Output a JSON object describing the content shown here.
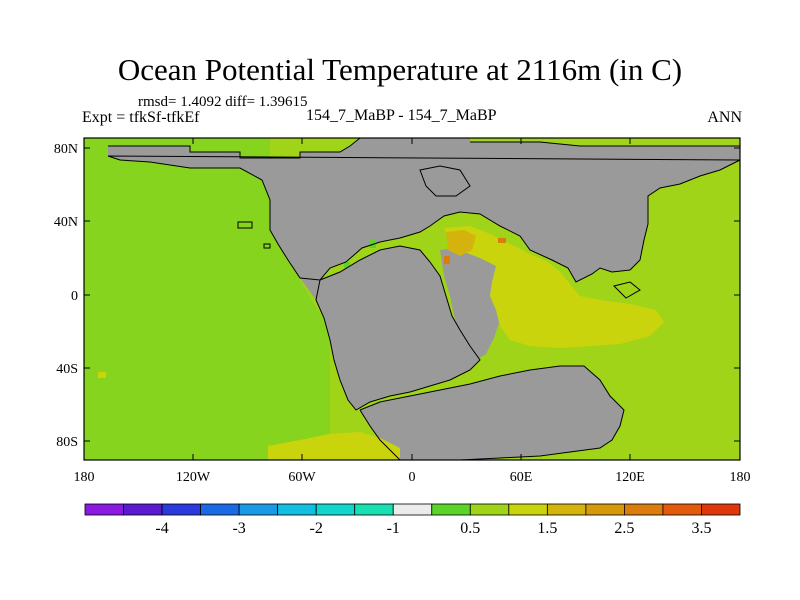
{
  "title": "Ocean Potential Temperature at 2116m (in C)",
  "stats": "rmsd= 1.4092 diff= 1.39615",
  "expt": "Expt = tfkSf-tfkEf",
  "case_label": "154_7_MaBP - 154_7_MaBP",
  "season": "ANN",
  "lon_ticks": [
    "180",
    "120W",
    "60W",
    "0",
    "60E",
    "120E",
    "180"
  ],
  "lat_ticks": [
    "80N",
    "40N",
    "0",
    "40S",
    "80S"
  ],
  "colorbar": {
    "colors": [
      "#8a1ae0",
      "#5a1ad0",
      "#2a3adc",
      "#1a6ae6",
      "#1a9ae6",
      "#12bfe0",
      "#12d6cc",
      "#18e0b0",
      "#ececec",
      "#5ad42a",
      "#a0d418",
      "#cad40c",
      "#d4b40c",
      "#d49a0c",
      "#dc7c0c",
      "#e45a0c",
      "#e0360c"
    ],
    "labels": [
      "-4",
      "-3",
      "-2",
      "-1",
      "0.5",
      "1.5",
      "2.5",
      "3.5"
    ]
  },
  "colors": {
    "land": "#9a9a9a",
    "ocean_main": "#a0d418",
    "ocean_warm": "#cad40c",
    "ocean_warmer": "#d4b40c",
    "ocean_hot": "#dc7c0c",
    "ocean_cool": "#5ad42a"
  }
}
